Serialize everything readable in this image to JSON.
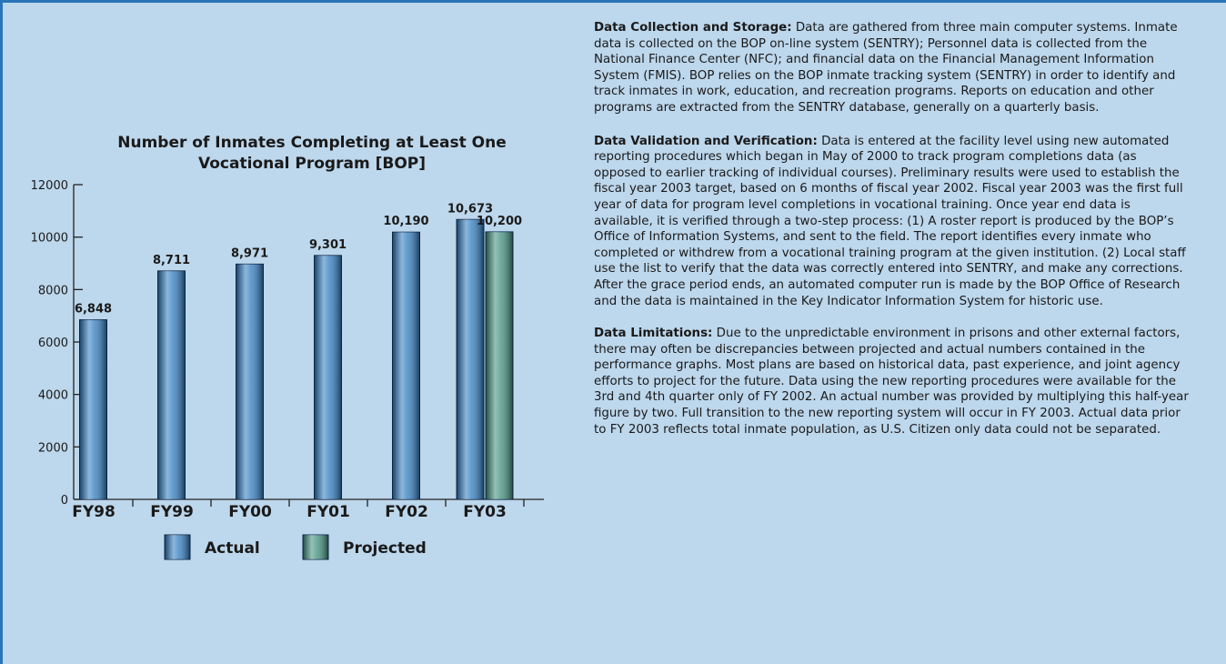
{
  "chart_data": {
    "type": "bar",
    "title": "Number of Inmates Completing at Least One Vocational Program [BOP]",
    "categories": [
      "FY98",
      "FY99",
      "FY00",
      "FY01",
      "FY02",
      "FY03"
    ],
    "series": [
      {
        "name": "Actual",
        "color": "#2f7bbf",
        "values": [
          6848,
          8711,
          8971,
          9301,
          10190,
          10673
        ],
        "value_labels": [
          "6,848",
          "8,711",
          "8,971",
          "9,301",
          "10,190",
          "10,673"
        ]
      },
      {
        "name": "Projected",
        "color": "#3f8f7c",
        "values": [
          null,
          null,
          null,
          null,
          null,
          10200
        ],
        "value_labels": [
          null,
          null,
          null,
          null,
          null,
          "10,200"
        ]
      }
    ],
    "ylim": [
      0,
      12000
    ],
    "yticks": [
      0,
      2000,
      4000,
      6000,
      8000,
      10000,
      12000
    ],
    "grid": false,
    "legend": "bottom"
  },
  "sections": [
    {
      "heading": "Data Collection and Storage:",
      "body": "Data are gathered from three main computer systems. Inmate data is collected on the BOP on-line system (SENTRY); Personnel data is collected from the National Finance Center (NFC); and financial data on the Financial Management Information System (FMIS). BOP relies on the BOP inmate tracking system (SENTRY) in order to identify and track inmates in work, education, and recreation programs.  Reports on education and other programs are extracted from the SENTRY database, generally on a quarterly basis."
    },
    {
      "heading": "Data Validation and Verification:",
      "body": "Data is entered at the facility level using new automated reporting procedures which began in May of 2000 to track program completions data (as opposed to earlier tracking of individual courses).  Preliminary results were used to establish the fiscal year 2003 target, based on 6 months of fiscal year 2002.  Fiscal year 2003 was the first full year of data for program level completions in vocational training.  Once year end data is available, it is verified through a two-step process:  (1) A roster report is produced by the BOP’s Office of Information Systems, and sent to the field.  The report identifies every inmate who completed or withdrew from a vocational training program at the given institution.  (2) Local staff use the list to verify that the data was correctly entered into SENTRY, and make any corrections.  After the grace period ends, an automated computer run is made by the BOP Office of Research and the data is maintained in the Key Indicator Information System for historic use."
    },
    {
      "heading": "Data Limitations:",
      "body": "Due to the unpredictable environment in prisons and other external factors, there may often be discrepancies between projected and actual numbers contained in the performance graphs. Most plans are based on historical data, past experience, and joint agency efforts to project for the future. Data using the new reporting procedures were available for the 3rd and 4th quarter only of FY 2002.  An actual number was provided by multiplying this half-year figure by two.  Full transition to the new reporting system will occur in FY 2003.  Actual data prior to FY 2003 reflects total inmate population, as U.S. Citizen only data could not be separated."
    }
  ]
}
